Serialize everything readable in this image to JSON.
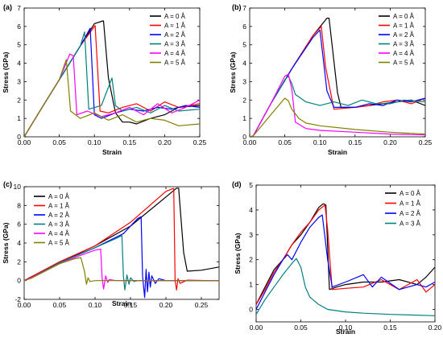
{
  "chart_data": [
    {
      "type": "line",
      "label": "(a)",
      "xlabel": "Strain",
      "ylabel": "Stress (GPa)",
      "xlim": [
        0,
        0.25
      ],
      "ylim": [
        0,
        7
      ],
      "xticks": [
        "0.00",
        "0.05",
        "0.10",
        "0.15",
        "0.20",
        "0.25"
      ],
      "yticks": [
        "0",
        "1",
        "2",
        "3",
        "4",
        "5",
        "6",
        "7"
      ],
      "legend": "top-right",
      "series": [
        {
          "name": "A = 0 Å",
          "color": "#000000",
          "x": [
            0,
            0.02,
            0.05,
            0.08,
            0.1,
            0.112,
            0.113,
            0.12,
            0.13,
            0.14,
            0.15,
            0.16,
            0.18,
            0.2,
            0.22,
            0.25
          ],
          "y": [
            0,
            1.25,
            3.1,
            4.95,
            6.15,
            6.3,
            6.3,
            3.2,
            1.3,
            0.8,
            0.8,
            0.7,
            1.0,
            1.2,
            1.6,
            1.7
          ]
        },
        {
          "name": "A = 1 Å",
          "color": "#ff0000",
          "x": [
            0,
            0.02,
            0.05,
            0.08,
            0.1,
            0.101,
            0.108,
            0.12,
            0.14,
            0.16,
            0.18,
            0.2,
            0.22,
            0.25
          ],
          "y": [
            0,
            1.25,
            3.1,
            4.95,
            6.0,
            6.05,
            1.4,
            1.3,
            1.6,
            1.8,
            1.4,
            1.9,
            1.6,
            1.8
          ]
        },
        {
          "name": "A = 2 Å",
          "color": "#0000ff",
          "x": [
            0,
            0.02,
            0.05,
            0.08,
            0.094,
            0.1,
            0.11,
            0.13,
            0.15,
            0.17,
            0.19,
            0.21,
            0.23,
            0.25
          ],
          "y": [
            0,
            1.25,
            3.1,
            4.95,
            5.9,
            1.2,
            1.0,
            1.3,
            1.5,
            1.4,
            1.6,
            1.5,
            1.7,
            1.6
          ]
        },
        {
          "name": "A = 3 Å",
          "color": "#008080",
          "x": [
            0,
            0.02,
            0.05,
            0.08,
            0.086,
            0.092,
            0.11,
            0.125,
            0.13,
            0.14,
            0.16,
            0.18,
            0.2,
            0.22,
            0.25
          ],
          "y": [
            0,
            1.25,
            3.1,
            4.95,
            5.7,
            1.5,
            1.7,
            3.2,
            1.7,
            1.4,
            1.6,
            1.3,
            1.7,
            1.4,
            1.5
          ]
        },
        {
          "name": "A = 4 Å",
          "color": "#ff00ff",
          "x": [
            0,
            0.02,
            0.05,
            0.065,
            0.07,
            0.075,
            0.09,
            0.11,
            0.13,
            0.15,
            0.17,
            0.19,
            0.21,
            0.23,
            0.25
          ],
          "y": [
            0,
            1.25,
            3.1,
            4.5,
            4.4,
            1.2,
            1.4,
            1.1,
            1.3,
            1.6,
            1.2,
            1.8,
            1.3,
            1.6,
            2.0
          ]
        },
        {
          "name": "A = 5 Å",
          "color": "#808000",
          "x": [
            0,
            0.02,
            0.05,
            0.06,
            0.066,
            0.08,
            0.1,
            0.12,
            0.14,
            0.16,
            0.18,
            0.2,
            0.22,
            0.25
          ],
          "y": [
            0,
            1.25,
            3.1,
            4.2,
            1.4,
            1.0,
            1.3,
            0.9,
            1.2,
            0.8,
            1.0,
            0.9,
            0.6,
            0.7
          ]
        }
      ]
    },
    {
      "type": "line",
      "label": "(b)",
      "xlabel": "Strain",
      "ylabel": "Stress (GPa)",
      "xlim": [
        0,
        0.25
      ],
      "ylim": [
        0,
        7
      ],
      "xticks": [
        "0.00",
        "0.05",
        "0.10",
        "0.15",
        "0.20",
        "0.25"
      ],
      "yticks": [
        "0",
        "1",
        "2",
        "3",
        "4",
        "5",
        "6",
        "7"
      ],
      "legend": "top-right",
      "series": [
        {
          "name": "A = 0 Å",
          "color": "#000000",
          "x": [
            0,
            0.005,
            0.03,
            0.06,
            0.09,
            0.11,
            0.113,
            0.125,
            0.13,
            0.15,
            0.17,
            0.19,
            0.21,
            0.23,
            0.25
          ],
          "y": [
            0,
            0.05,
            1.8,
            3.7,
            5.5,
            6.45,
            6.45,
            2.4,
            1.6,
            1.6,
            1.7,
            1.8,
            1.9,
            2.0,
            1.7
          ]
        },
        {
          "name": "A = 1 Å",
          "color": "#ff0000",
          "x": [
            0,
            0.005,
            0.03,
            0.06,
            0.09,
            0.102,
            0.108,
            0.12,
            0.15,
            0.17,
            0.19,
            0.21,
            0.23,
            0.25
          ],
          "y": [
            0,
            0.05,
            1.8,
            3.7,
            5.5,
            6.0,
            3.8,
            1.5,
            1.6,
            1.7,
            1.9,
            2.0,
            1.8,
            2.1
          ]
        },
        {
          "name": "A = 2 Å",
          "color": "#0000ff",
          "x": [
            0,
            0.005,
            0.03,
            0.06,
            0.09,
            0.1,
            0.11,
            0.12,
            0.15,
            0.17,
            0.19,
            0.21,
            0.23,
            0.25
          ],
          "y": [
            0,
            0.05,
            1.8,
            3.7,
            5.4,
            5.8,
            2.5,
            1.6,
            1.6,
            1.8,
            1.7,
            2.0,
            1.9,
            2.1
          ]
        },
        {
          "name": "A = 3 Å",
          "color": "#008080",
          "x": [
            0,
            0.005,
            0.03,
            0.05,
            0.055,
            0.06,
            0.065,
            0.08,
            0.1,
            0.12,
            0.14,
            0.16,
            0.18,
            0.2,
            0.22,
            0.25
          ],
          "y": [
            0,
            0.05,
            1.8,
            3.1,
            3.3,
            2.9,
            2.3,
            1.9,
            1.7,
            1.9,
            1.7,
            2.0,
            1.8,
            1.8,
            2.0,
            1.9
          ]
        },
        {
          "name": "A = 4 Å",
          "color": "#ff00ff",
          "x": [
            0,
            0.005,
            0.03,
            0.05,
            0.055,
            0.06,
            0.065,
            0.08,
            0.1,
            0.15,
            0.2,
            0.25
          ],
          "y": [
            0,
            0.05,
            1.8,
            3.3,
            3.4,
            2.6,
            0.8,
            0.45,
            0.35,
            0.25,
            0.15,
            0.1
          ]
        },
        {
          "name": "A = 5 Å",
          "color": "#808000",
          "x": [
            0,
            0.005,
            0.03,
            0.05,
            0.055,
            0.06,
            0.07,
            0.08,
            0.1,
            0.15,
            0.2,
            0.25
          ],
          "y": [
            0,
            0.05,
            1.2,
            2.1,
            1.95,
            1.5,
            1.0,
            0.75,
            0.6,
            0.4,
            0.25,
            0.15
          ]
        }
      ]
    },
    {
      "type": "line",
      "label": "(c)",
      "xlabel": "Strain",
      "ylabel": "Stress (GPa)",
      "xlim": [
        0,
        0.275
      ],
      "ylim": [
        -2,
        10
      ],
      "xticks": [
        "0.00",
        "0.05",
        "0.10",
        "0.15",
        "0.20",
        "0.25"
      ],
      "yticks": [
        "-2",
        "0",
        "2",
        "4",
        "6",
        "8",
        "10"
      ],
      "legend": "top-left",
      "series": [
        {
          "name": "A = 0 Å",
          "color": "#000000",
          "x": [
            0,
            0.01,
            0.05,
            0.1,
            0.15,
            0.2,
            0.215,
            0.218,
            0.225,
            0.23,
            0.25,
            0.275
          ],
          "y": [
            0,
            0.4,
            1.9,
            3.7,
            5.8,
            8.9,
            9.85,
            9.85,
            3.0,
            1.0,
            1.1,
            1.45
          ]
        },
        {
          "name": "A = 1 Å",
          "color": "#ff0000",
          "x": [
            0,
            0.01,
            0.05,
            0.1,
            0.15,
            0.2,
            0.21,
            0.211,
            0.213,
            0.215,
            0.217,
            0.22,
            0.23,
            0.26,
            0.275
          ],
          "y": [
            0,
            0.4,
            2.0,
            3.7,
            6.2,
            9.5,
            9.8,
            9.8,
            0.0,
            -1.0,
            0.2,
            -0.3,
            0.05,
            0.0,
            0.0
          ]
        },
        {
          "name": "A = 2 Å",
          "color": "#0000ff",
          "x": [
            0,
            0.01,
            0.05,
            0.1,
            0.14,
            0.16,
            0.165,
            0.167,
            0.17,
            0.172,
            0.174,
            0.176,
            0.178,
            0.18,
            0.185,
            0.19,
            0.2,
            0.275
          ],
          "y": [
            0,
            0.3,
            1.9,
            3.5,
            5.0,
            6.6,
            6.8,
            0.5,
            -1.8,
            1.2,
            -1.2,
            0.9,
            -0.7,
            0.5,
            -0.3,
            0.2,
            0.0,
            0.0
          ]
        },
        {
          "name": "A = 3 Å",
          "color": "#008080",
          "x": [
            0,
            0.01,
            0.05,
            0.1,
            0.13,
            0.138,
            0.14,
            0.142,
            0.145,
            0.148,
            0.15,
            0.155,
            0.16,
            0.275
          ],
          "y": [
            0,
            0.3,
            1.9,
            3.5,
            4.5,
            4.8,
            0.5,
            -1.0,
            0.6,
            -0.4,
            0.3,
            -0.1,
            0.0,
            0.0
          ]
        },
        {
          "name": "A = 4 Å",
          "color": "#ff00ff",
          "x": [
            0,
            0.01,
            0.05,
            0.08,
            0.1,
            0.108,
            0.11,
            0.112,
            0.115,
            0.118,
            0.12,
            0.13,
            0.275
          ],
          "y": [
            0,
            0.3,
            1.8,
            2.7,
            3.25,
            3.35,
            0.3,
            -0.9,
            0.5,
            -0.2,
            0.1,
            0.0,
            0.0
          ]
        },
        {
          "name": "A = 5 Å",
          "color": "#808000",
          "x": [
            0,
            0.01,
            0.05,
            0.07,
            0.08,
            0.085,
            0.088,
            0.09,
            0.093,
            0.1,
            0.275
          ],
          "y": [
            0,
            0.25,
            1.8,
            2.3,
            2.45,
            1.0,
            -0.4,
            0.3,
            -0.1,
            0.0,
            0.0
          ]
        }
      ]
    },
    {
      "type": "line",
      "label": "(d)",
      "xlabel": "Strain",
      "ylabel": "Stress (GPa)",
      "xlim": [
        0,
        0.2
      ],
      "ylim": [
        -0.5,
        5
      ],
      "xticks": [
        "0.00",
        "0.05",
        "0.10",
        "0.15",
        "0.20"
      ],
      "yticks": [
        "0",
        "1",
        "2",
        "3",
        "4",
        "5"
      ],
      "legend": "top-right",
      "series": [
        {
          "name": "A = 0 Å",
          "color": "#000000",
          "x": [
            0,
            0.01,
            0.02,
            0.03,
            0.04,
            0.05,
            0.06,
            0.07,
            0.075,
            0.078,
            0.082,
            0.09,
            0.1,
            0.12,
            0.14,
            0.16,
            0.18,
            0.19,
            0.2
          ],
          "y": [
            0.2,
            0.9,
            1.6,
            2.0,
            2.6,
            3.0,
            3.5,
            4.1,
            4.25,
            4.2,
            0.8,
            0.9,
            1.0,
            1.1,
            1.1,
            1.2,
            1.0,
            1.3,
            1.7
          ]
        },
        {
          "name": "A = 1 Å",
          "color": "#ff0000",
          "x": [
            0,
            0.01,
            0.02,
            0.03,
            0.04,
            0.05,
            0.06,
            0.07,
            0.077,
            0.08,
            0.085,
            0.1,
            0.12,
            0.14,
            0.16,
            0.18,
            0.19,
            0.2
          ],
          "y": [
            0.2,
            0.8,
            1.5,
            2.0,
            2.6,
            3.1,
            3.5,
            4.0,
            4.2,
            3.2,
            0.8,
            0.85,
            0.9,
            1.2,
            0.8,
            1.2,
            0.7,
            1.0
          ]
        },
        {
          "name": "A = 2 Å",
          "color": "#0000ff",
          "x": [
            0,
            0.01,
            0.02,
            0.03,
            0.035,
            0.04,
            0.05,
            0.06,
            0.07,
            0.074,
            0.08,
            0.085,
            0.1,
            0.12,
            0.13,
            0.14,
            0.16,
            0.18,
            0.19,
            0.2
          ],
          "y": [
            0.0,
            0.7,
            1.4,
            2.0,
            2.2,
            2.0,
            2.7,
            3.3,
            3.7,
            3.8,
            2.0,
            0.9,
            1.1,
            1.4,
            0.9,
            1.3,
            0.8,
            1.0,
            0.9,
            1.1
          ]
        },
        {
          "name": "A = 3 Å",
          "color": "#008080",
          "x": [
            0,
            0.01,
            0.02,
            0.03,
            0.04,
            0.045,
            0.05,
            0.055,
            0.06,
            0.07,
            0.08,
            0.1,
            0.12,
            0.15,
            0.2
          ],
          "y": [
            -0.2,
            0.4,
            0.9,
            1.4,
            1.85,
            2.05,
            1.7,
            0.9,
            0.5,
            0.2,
            0.0,
            -0.1,
            -0.15,
            -0.2,
            -0.25
          ]
        }
      ]
    }
  ]
}
